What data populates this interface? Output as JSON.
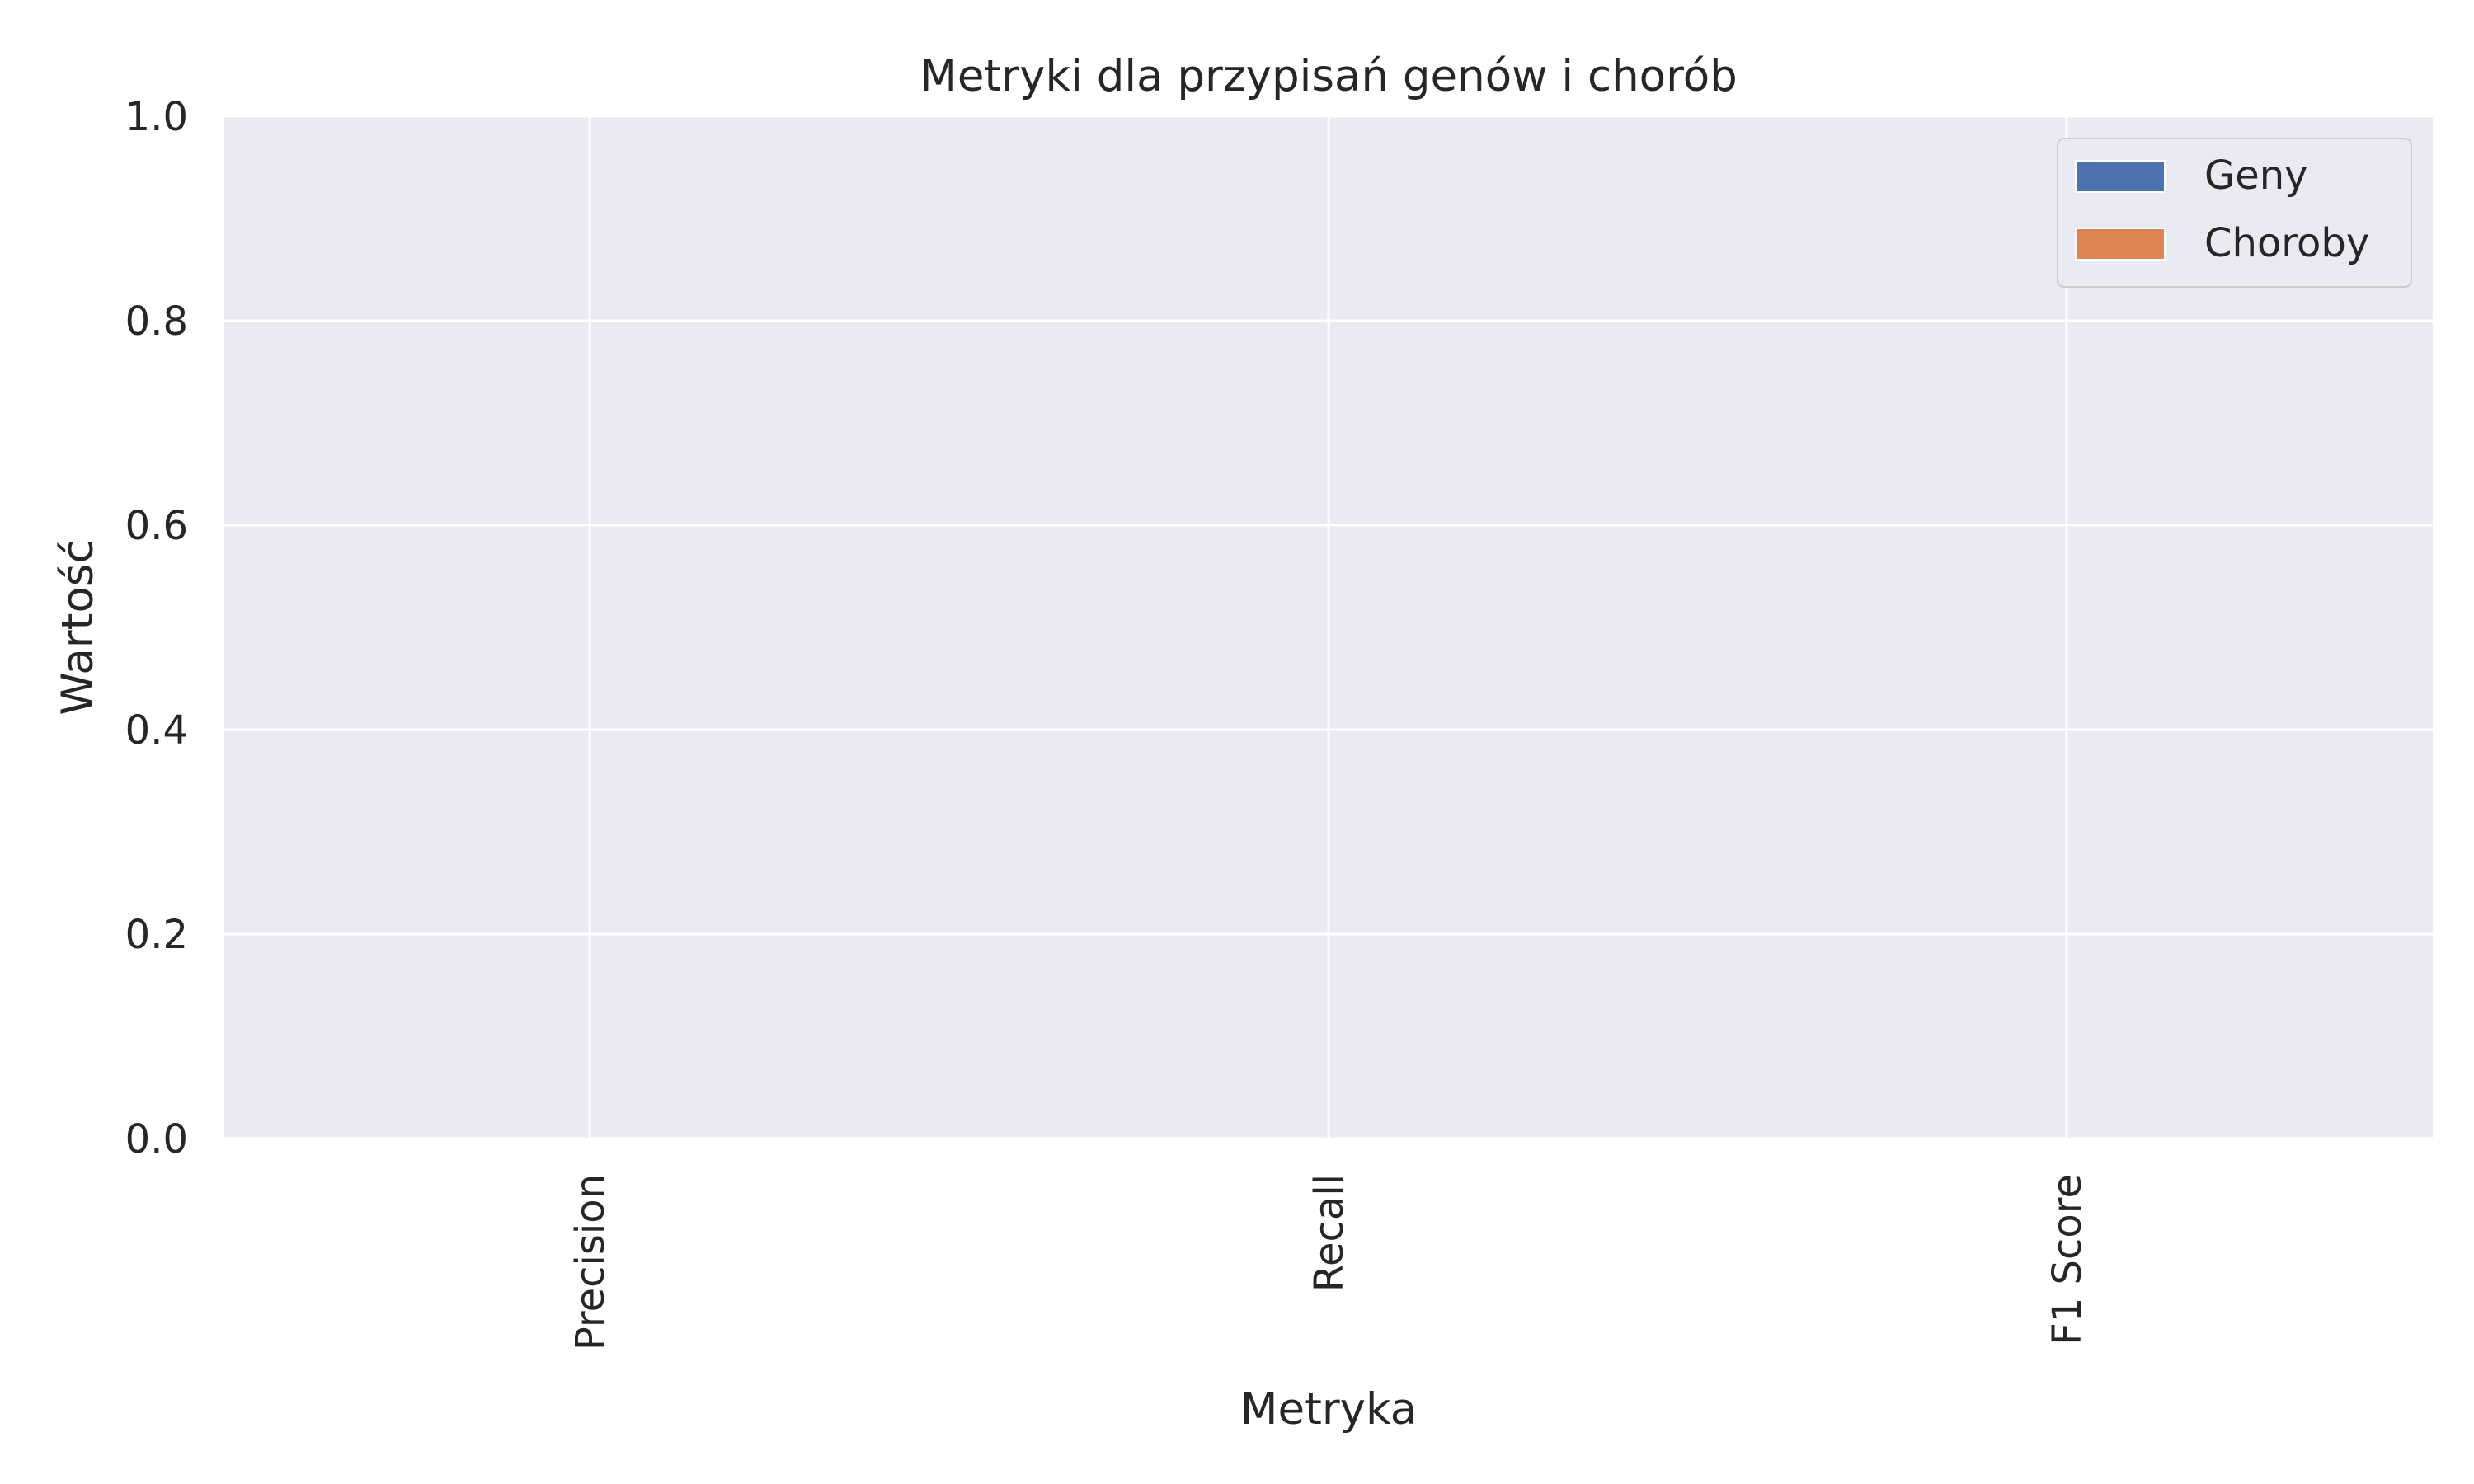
{
  "chart_data": {
    "type": "bar",
    "title": "Metryki dla przypisań genów i chorób",
    "xlabel": "Metryka",
    "ylabel": "Wartość",
    "categories": [
      "Precision",
      "Recall",
      "F1 Score"
    ],
    "series": [
      {
        "name": "Geny",
        "color": "#4c72b0",
        "values": [
          0,
          0,
          0
        ]
      },
      {
        "name": "Choroby",
        "color": "#dd8452",
        "values": [
          0,
          0,
          0
        ]
      }
    ],
    "ylim": [
      0,
      1.0
    ],
    "yticks": [
      "0.0",
      "0.2",
      "0.4",
      "0.6",
      "0.8",
      "1.0"
    ],
    "grid": true,
    "legend_position": "top-right",
    "background_color": "#eaeaf2"
  }
}
